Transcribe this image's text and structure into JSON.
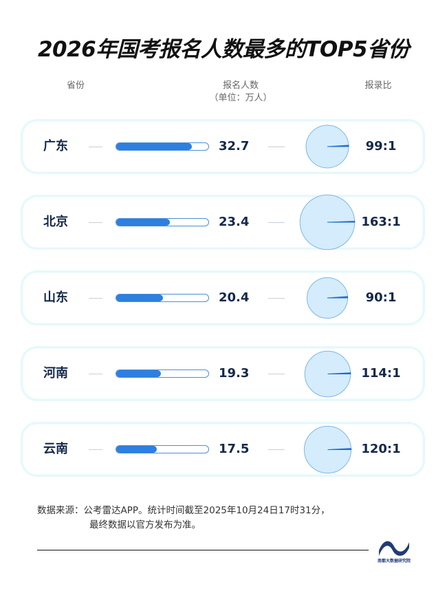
{
  "title": "2026年国考报名人数最多的TOP5省份",
  "headers": {
    "province": "省份",
    "count": "报名人数",
    "count_unit": "（单位：万人）",
    "ratio": "报录比"
  },
  "chart_data": {
    "type": "table",
    "title": "2026年国考报名人数最多的TOP5省份",
    "columns": [
      "省份",
      "报名人数",
      "报录比"
    ],
    "count_unit": "万人",
    "bar_max": 40,
    "rows": [
      {
        "province": "广东",
        "count": 32.7,
        "count_label": "32.7",
        "ratio": 99,
        "ratio_label": "99:1"
      },
      {
        "province": "北京",
        "count": 23.4,
        "count_label": "23.4",
        "ratio": 163,
        "ratio_label": "163:1"
      },
      {
        "province": "山东",
        "count": 20.4,
        "count_label": "20.4",
        "ratio": 90,
        "ratio_label": "90:1"
      },
      {
        "province": "河南",
        "count": 19.3,
        "count_label": "19.3",
        "ratio": 114,
        "ratio_label": "114:1"
      },
      {
        "province": "云南",
        "count": 17.5,
        "count_label": "17.5",
        "ratio": 120,
        "ratio_label": "120:1"
      }
    ]
  },
  "colors": {
    "bar_fill": "#2d7fe0",
    "bar_border": "#4a8fd8",
    "pie_fill": "#d4ecfb",
    "pie_stroke": "#7fb6e6",
    "pie_slice": "#1f6fd1",
    "row_border": "#e6f8fb"
  },
  "source": {
    "line1": "数据来源：公考雷达APP。统计时间截至2025年10月24日17时31分，",
    "line2": "最终数据以官方发布为准。"
  },
  "logo": {
    "icon": "wave-logo-icon",
    "text": "南都大数据研究院"
  }
}
